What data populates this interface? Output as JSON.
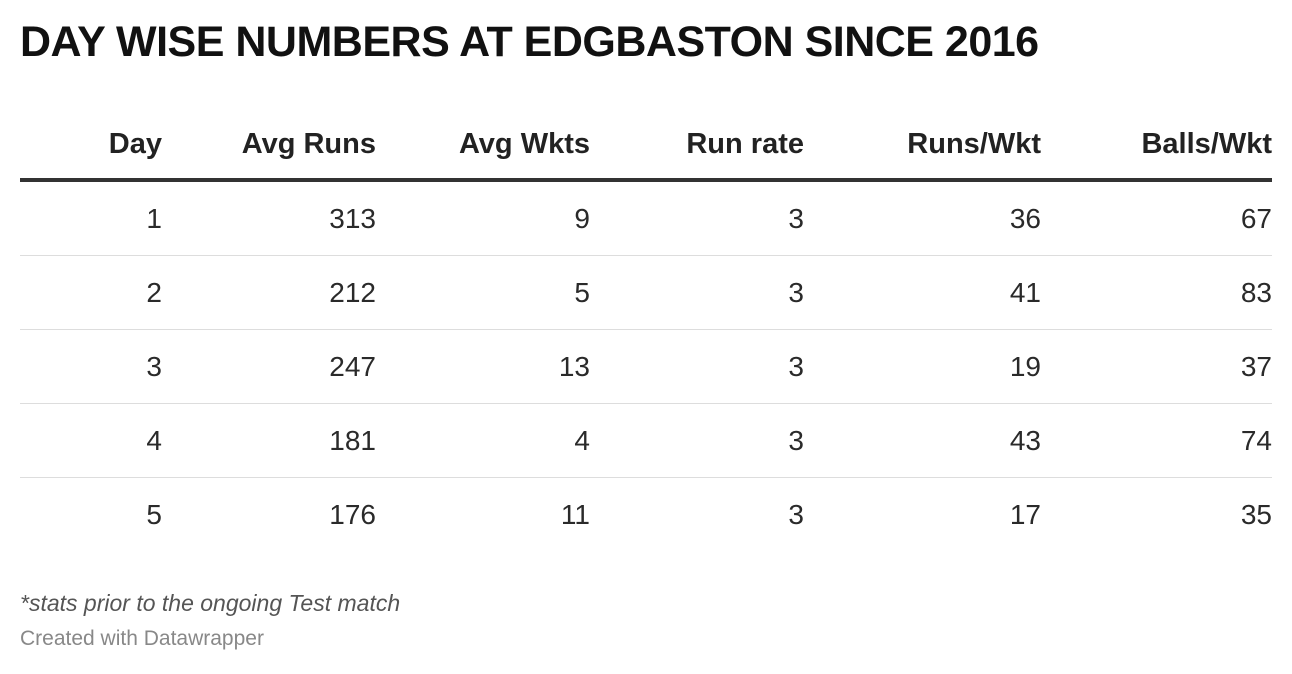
{
  "chart_data": {
    "type": "table",
    "title": "DAY WISE NUMBERS AT EDGBASTON SINCE 2016",
    "columns": [
      "Day",
      "Avg Runs",
      "Avg Wkts",
      "Run rate",
      "Runs/Wkt",
      "Balls/Wkt"
    ],
    "rows": [
      [
        "1",
        "313",
        "9",
        "3",
        "36",
        "67"
      ],
      [
        "2",
        "212",
        "5",
        "3",
        "41",
        "83"
      ],
      [
        "3",
        "247",
        "13",
        "3",
        "19",
        "37"
      ],
      [
        "4",
        "181",
        "4",
        "3",
        "43",
        "74"
      ],
      [
        "5",
        "176",
        "11",
        "3",
        "17",
        "35"
      ]
    ],
    "notes": "*stats prior to the ongoing Test match",
    "byline": "Created with Datawrapper"
  }
}
